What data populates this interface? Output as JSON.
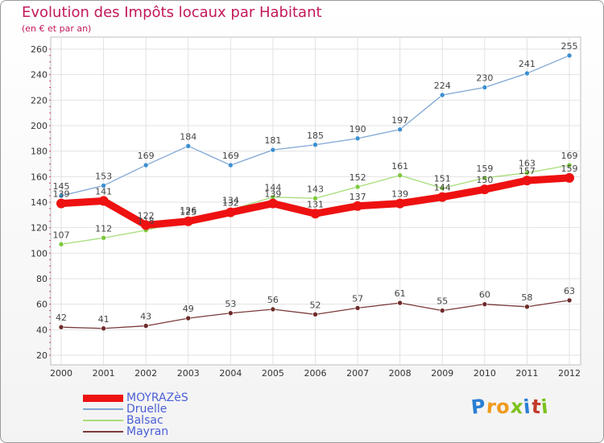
{
  "brand": {
    "letters": [
      "P",
      "r",
      "o",
      "x",
      "i",
      "t",
      "i"
    ],
    "colors": [
      "#2a7fd4",
      "#f09a1e",
      "#f09a1e",
      "#7cc11e",
      "#2a7fd4",
      "#c23a2a",
      "#7cc11e"
    ]
  },
  "chart_data": {
    "type": "line",
    "title": "Evolution des Impôts locaux par Habitant",
    "subtitle": "(en € et par an)",
    "xlabel": "",
    "ylabel": "",
    "categories": [
      "2000",
      "2001",
      "2002",
      "2003",
      "2004",
      "2005",
      "2006",
      "2007",
      "2008",
      "2009",
      "2010",
      "2011",
      "2012"
    ],
    "ylim": [
      20,
      260
    ],
    "yticks": [
      20,
      40,
      60,
      80,
      100,
      120,
      140,
      160,
      180,
      200,
      220,
      240,
      260
    ],
    "grid": true,
    "legend_position": "bottom-left",
    "series": [
      {
        "name": "MOYRAZèS",
        "color": "#ee1111",
        "marker": "#ee1111",
        "emphasis": true,
        "values": [
          139,
          141,
          122,
          125,
          132,
          139,
          131,
          137,
          139,
          144,
          150,
          157,
          159
        ]
      },
      {
        "name": "Druelle",
        "color": "#7ea6d4",
        "marker": "#3d8fd1",
        "values": [
          145,
          153,
          169,
          184,
          169,
          181,
          185,
          190,
          197,
          224,
          230,
          241,
          255
        ]
      },
      {
        "name": "Balsac",
        "color": "#a6dd78",
        "marker": "#7cc93c",
        "values": [
          107,
          112,
          118,
          126,
          134,
          144,
          143,
          152,
          161,
          151,
          159,
          163,
          169
        ]
      },
      {
        "name": "Mayran",
        "color": "#7a3b3b",
        "marker": "#6e2a2a",
        "values": [
          42,
          41,
          43,
          49,
          53,
          56,
          52,
          57,
          61,
          55,
          60,
          58,
          63
        ]
      }
    ]
  }
}
